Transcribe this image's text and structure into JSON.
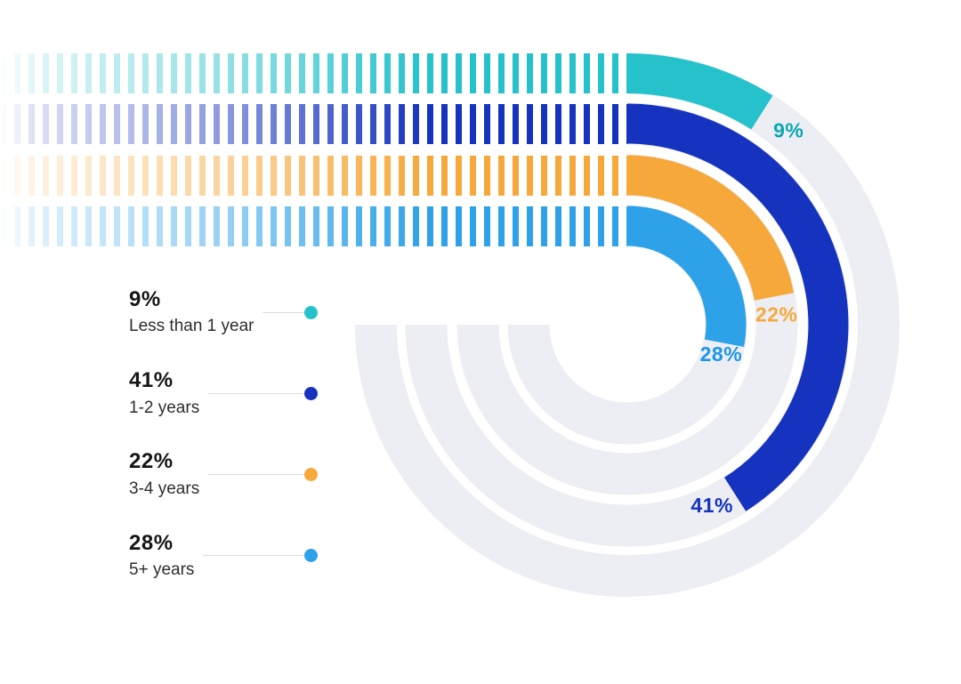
{
  "chart_data": {
    "type": "radial-bar",
    "title": "",
    "categories": [
      "Less than 1 year",
      "1-2 years",
      "3-4 years",
      "5+ years"
    ],
    "values": [
      9,
      41,
      22,
      28
    ],
    "value_labels": [
      "9%",
      "41%",
      "22%",
      "28%"
    ],
    "unit": "%",
    "max": 100,
    "start_angle_deg": 0,
    "direction": "clockwise",
    "grid": "concentric-track-rings",
    "legend_position": "left",
    "colors": [
      "#25C2CB",
      "#1533BE",
      "#F7A83B",
      "#2EA2E9"
    ],
    "value_label_colors": [
      "#0BA7B6",
      "#1533BE",
      "#F7A83B",
      "#1D96E8"
    ],
    "track_color": "#ECEEF3"
  },
  "legend": {
    "items": [
      {
        "value": "9%",
        "label": "Less than 1 year",
        "color": "#25C2CB"
      },
      {
        "value": "41%",
        "label": "1-2 years",
        "color": "#1533BE"
      },
      {
        "value": "22%",
        "label": "3-4 years",
        "color": "#F7A83B"
      },
      {
        "value": "28%",
        "label": "5+ years",
        "color": "#2EA2E9"
      }
    ]
  }
}
